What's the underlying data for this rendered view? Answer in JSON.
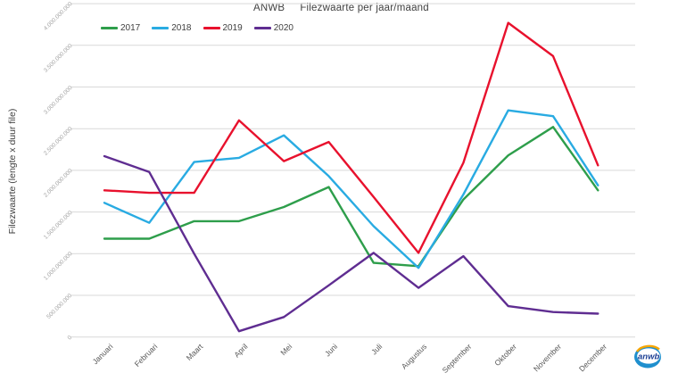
{
  "header": {
    "brand": "ANWB",
    "title": "Filezwaarte per jaar/maand"
  },
  "chart_data": {
    "type": "line",
    "title": "ANWB  Filezwaarte per jaar/maand",
    "xlabel": "",
    "ylabel": "Filezwaarte (lengte x duur file)",
    "ylim": [
      0,
      4000000000
    ],
    "grid": true,
    "legend_position": "top-left",
    "y_ticks": [
      "0",
      "500.000.000",
      "1.000.000.000",
      "1.500.000.000",
      "2.000.000.000",
      "2.500.000.000",
      "3.000.000.000",
      "3.500.000.000",
      "4.000.000.000"
    ],
    "categories": [
      "Januari",
      "Februari",
      "Maart",
      "April",
      "Mei",
      "Juni",
      "Juli",
      "Augustus",
      "September",
      "Oktober",
      "November",
      "December"
    ],
    "series": [
      {
        "name": "2017",
        "color": "#2e9e4b",
        "values": [
          1180000000,
          1180000000,
          1390000000,
          1390000000,
          1560000000,
          1800000000,
          890000000,
          850000000,
          1650000000,
          2180000000,
          2520000000,
          1760000000
        ]
      },
      {
        "name": "2018",
        "color": "#29abe2",
        "values": [
          1610000000,
          1370000000,
          2100000000,
          2150000000,
          2420000000,
          1930000000,
          1330000000,
          830000000,
          1710000000,
          2720000000,
          2650000000,
          1820000000
        ]
      },
      {
        "name": "2019",
        "color": "#e8112d",
        "values": [
          1760000000,
          1730000000,
          1730000000,
          2600000000,
          2110000000,
          2340000000,
          1680000000,
          1010000000,
          2090000000,
          3770000000,
          3370000000,
          2060000000
        ]
      },
      {
        "name": "2020",
        "color": "#5f2d91",
        "values": [
          2170000000,
          1980000000,
          1000000000,
          70000000,
          240000000,
          620000000,
          1010000000,
          590000000,
          970000000,
          370000000,
          300000000,
          280000000
        ]
      }
    ]
  },
  "logo": {
    "text": "anwb"
  }
}
